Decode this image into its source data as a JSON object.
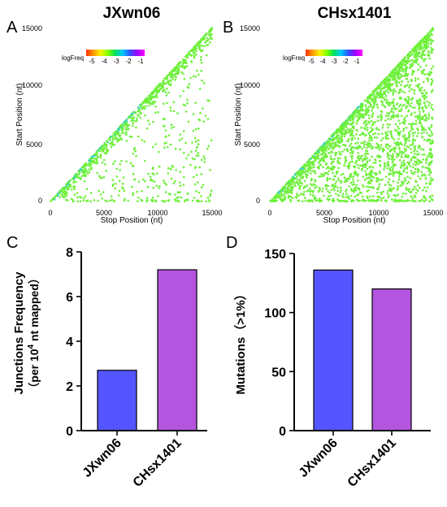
{
  "chart_data": [
    {
      "panel_letter": "A",
      "type": "scatter",
      "title": "JXwn06",
      "xlabel": "Stop Position (nt)",
      "ylabel": "Start Position (nt)",
      "xlim": [
        0,
        15000
      ],
      "ylim": [
        0,
        15000
      ],
      "xticks": [
        "0",
        "5000",
        "10000",
        "15000"
      ],
      "yticks": [
        "0",
        "5000",
        "10000",
        "15000"
      ],
      "legend_title": "logFreq",
      "legend_ticks": [
        "-5",
        "-4",
        "-3",
        "-2",
        "-1"
      ],
      "colorscale": [
        "#ff3000",
        "#ff9a00",
        "#f5f500",
        "#7dff00",
        "#00e060",
        "#00c8ff",
        "#3050ff",
        "#a000ff",
        "#ff00ff"
      ],
      "dominant_color": "#6ef03a",
      "density": "sparse"
    },
    {
      "panel_letter": "B",
      "type": "scatter",
      "title": "CHsx1401",
      "xlabel": "Stop Position (nt)",
      "ylabel": "Start Position (nt)",
      "xlim": [
        0,
        15000
      ],
      "ylim": [
        0,
        15000
      ],
      "xticks": [
        "0",
        "5000",
        "10000",
        "15000"
      ],
      "yticks": [
        "0",
        "5000",
        "10000",
        "15000"
      ],
      "legend_title": "logFreq",
      "legend_ticks": [
        "-5",
        "-4",
        "-3",
        "-2",
        "-1"
      ],
      "colorscale": [
        "#ff3000",
        "#ff9a00",
        "#f5f500",
        "#7dff00",
        "#00e060",
        "#00c8ff",
        "#3050ff",
        "#a000ff",
        "#ff00ff"
      ],
      "dominant_color": "#6ef03a",
      "density": "dense"
    },
    {
      "panel_letter": "C",
      "type": "bar",
      "categories": [
        "JXwn06",
        "CHsx1401"
      ],
      "values": [
        2.7,
        7.2
      ],
      "colors": [
        "#5555ff",
        "#b455e0"
      ],
      "ylabel_line1": "Junctions Frequency",
      "ylabel_line2_pre": "（per 10",
      "ylabel_line2_sup": "4",
      "ylabel_line2_post": " nt mapped）",
      "ylim": [
        0,
        8
      ],
      "yticks": [
        "0",
        "2",
        "4",
        "6",
        "8"
      ]
    },
    {
      "panel_letter": "D",
      "type": "bar",
      "categories": [
        "JXwn06",
        "CHsx1401"
      ],
      "values": [
        136,
        120
      ],
      "colors": [
        "#5555ff",
        "#b455e0"
      ],
      "ylabel": "Mutations（>1%）",
      "ylim": [
        0,
        150
      ],
      "yticks": [
        "0",
        "50",
        "100",
        "150"
      ]
    }
  ]
}
